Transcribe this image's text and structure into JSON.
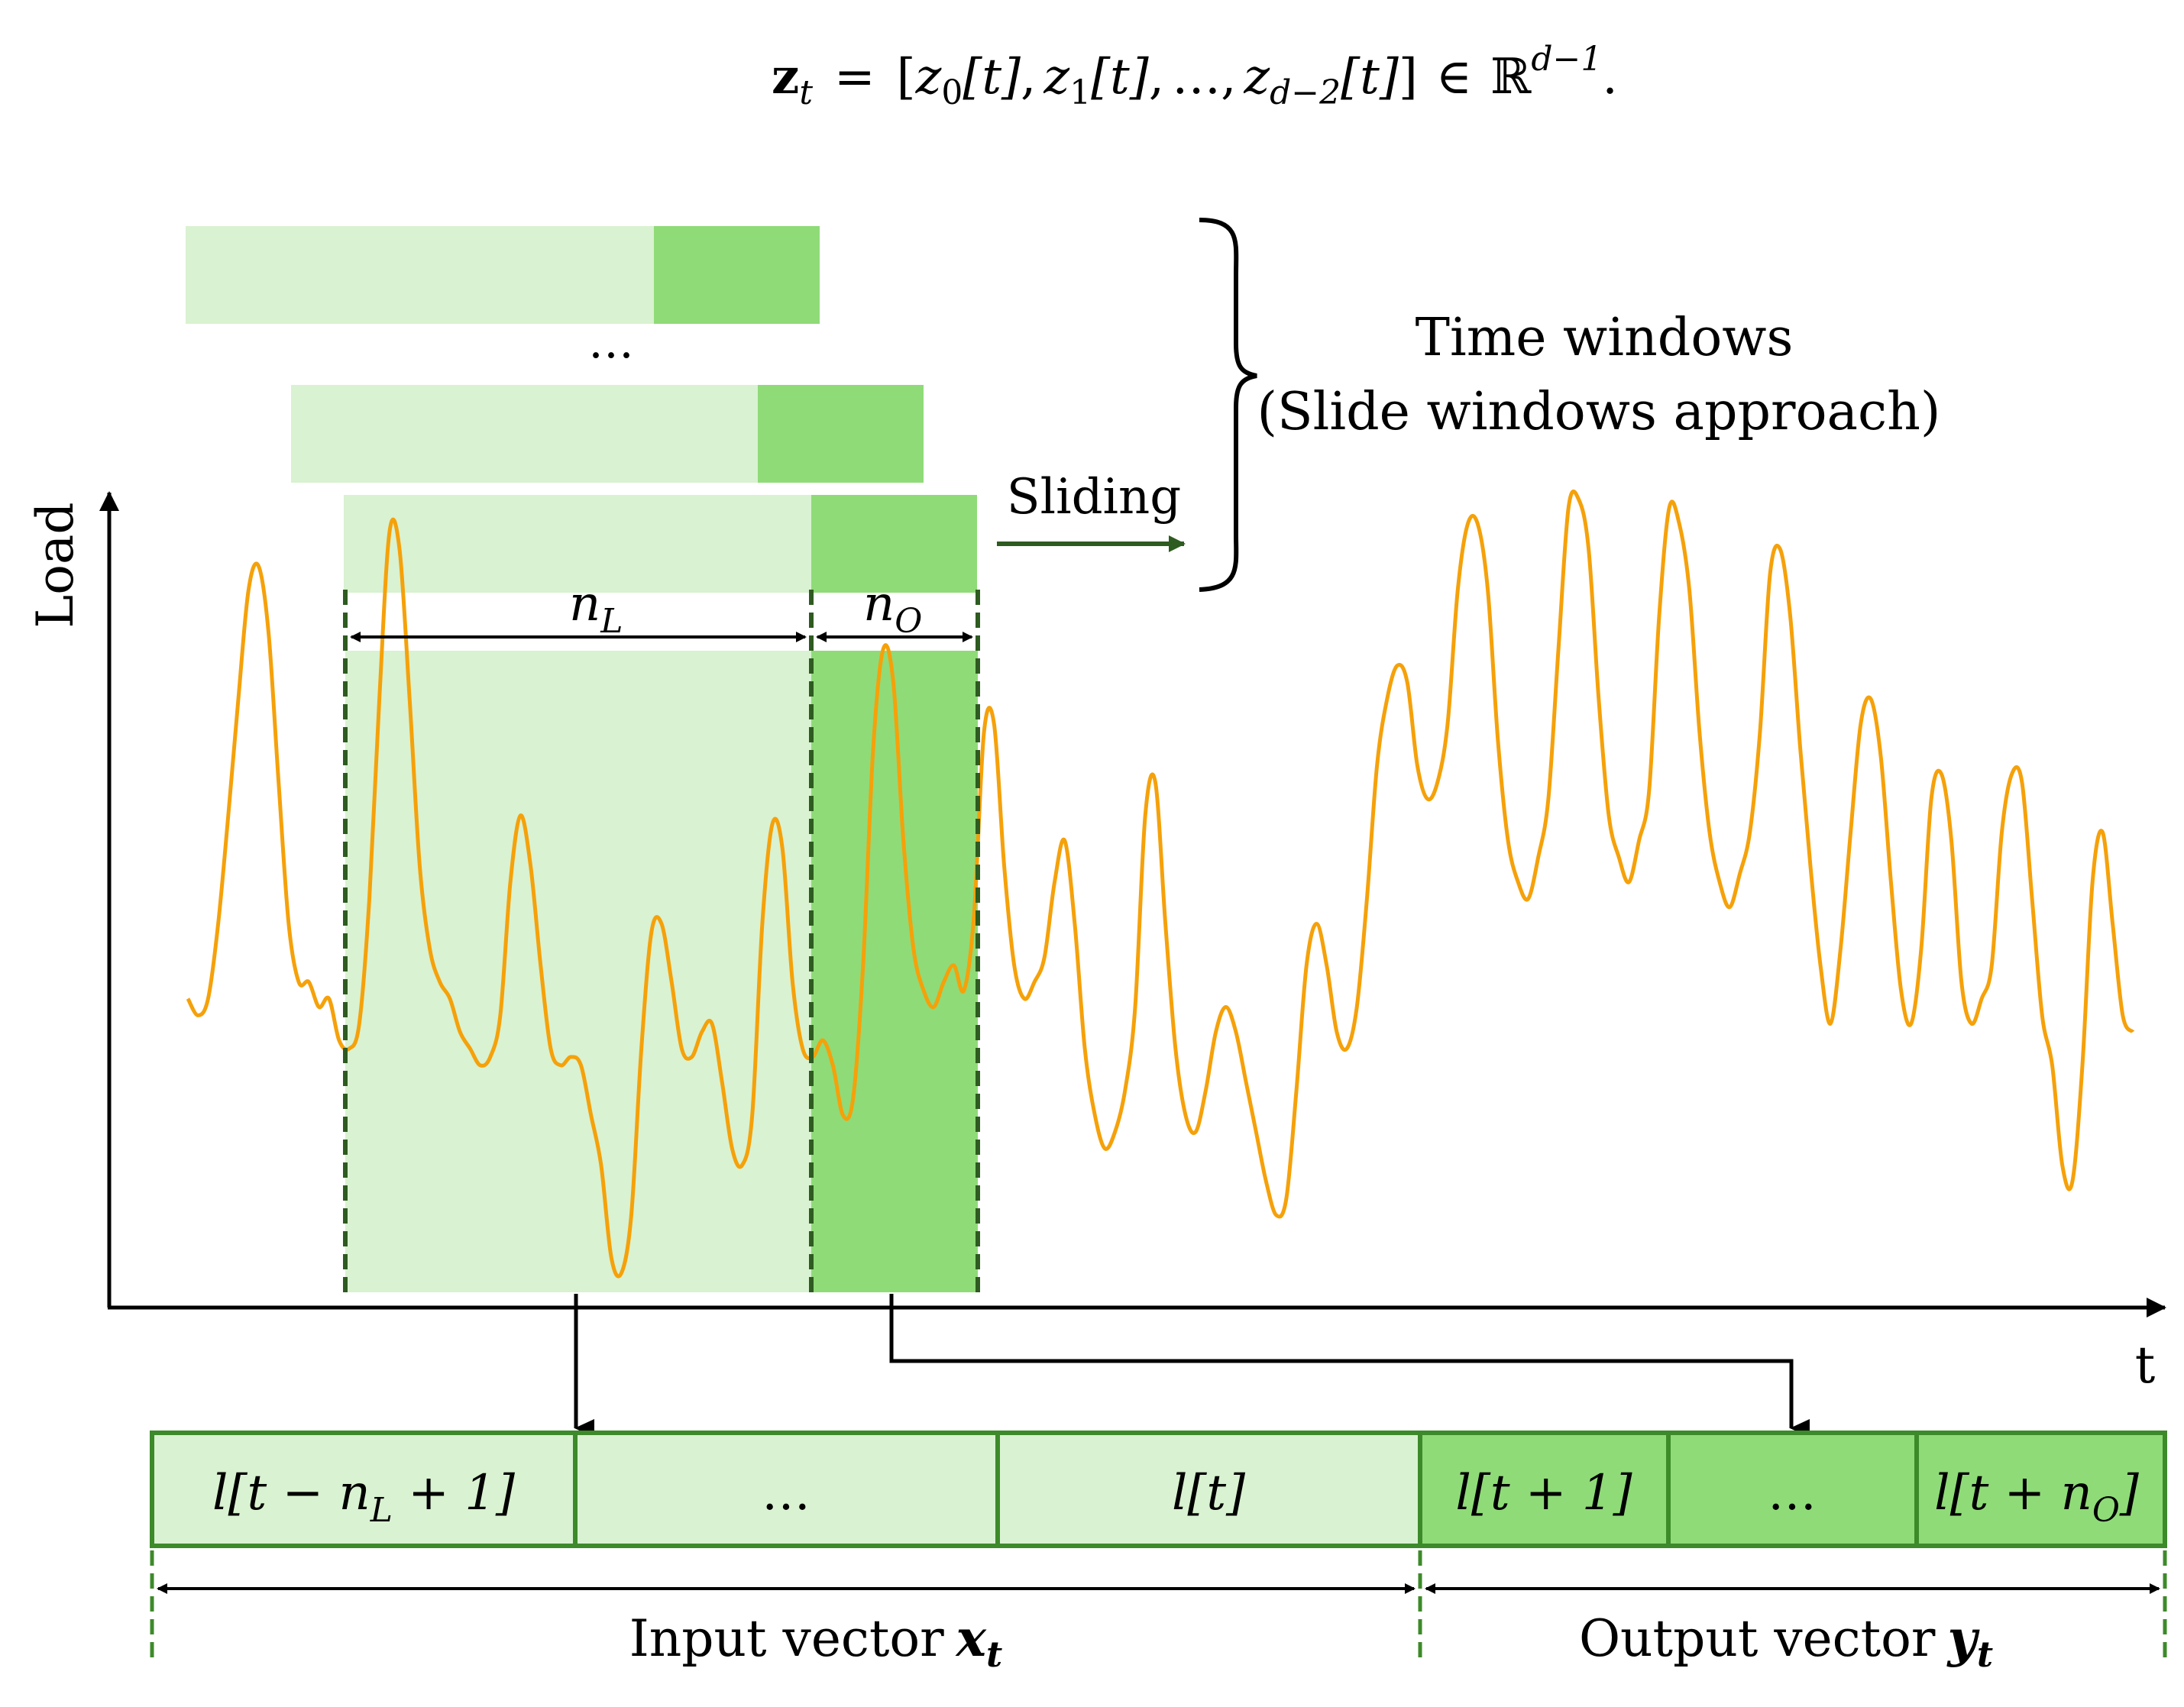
{
  "formula": {
    "lhs_symbol": "z",
    "lhs_sub": "t",
    "equals": "=",
    "open_bracket": "[",
    "c0": "z",
    "c0_sub": "0",
    "c0_arg": "[t]",
    "comma1": ",",
    "c1": "z",
    "c1_sub": "1",
    "c1_arg": "[t]",
    "comma2": ",",
    "ellipsis": "…",
    "comma3": ",",
    "c2": "z",
    "c2_sub": "d−2",
    "c2_arg": "[t]",
    "close_bracket": "]",
    "in": "∈",
    "space": "ℝ",
    "space_sup": "d−1",
    "period": "."
  },
  "windows": {
    "label_line1": "Time windows",
    "label_line2": "(Slide windows approach)",
    "stack_ellipsis": "…",
    "sliding_label": "Sliding",
    "nL_base": "n",
    "nL_sub": "L",
    "nO_base": "n",
    "nO_sub": "O"
  },
  "axes": {
    "y_label": "Load",
    "x_label": "t"
  },
  "vector": {
    "cells": [
      {
        "label_pre": "l[t − n",
        "label_sub": "L",
        "label_post": " + 1]",
        "kind": "input"
      },
      {
        "label_pre": "…",
        "label_sub": "",
        "label_post": "",
        "kind": "input"
      },
      {
        "label_pre": "l[t]",
        "label_sub": "",
        "label_post": "",
        "kind": "input"
      },
      {
        "label_pre": "l[t + 1]",
        "label_sub": "",
        "label_post": "",
        "kind": "output"
      },
      {
        "label_pre": "…",
        "label_sub": "",
        "label_post": "",
        "kind": "output"
      },
      {
        "label_pre": "l[t + n",
        "label_sub": "O",
        "label_post": "]",
        "kind": "output"
      }
    ],
    "input_label": "Input vector",
    "input_symbol": "x",
    "input_sub": "t",
    "output_label": "Output vector",
    "output_symbol": "y",
    "output_sub": "t"
  },
  "colors": {
    "light_green": "#d9f2d1",
    "mid_green": "#8fdb78",
    "border_green": "#3d8a2a",
    "dark_green": "#2e5b20",
    "load_line": "#f5a10a",
    "black": "#000000"
  },
  "load_series": {
    "description_note": "relative load level of the plotted series, 0 = axis baseline, 1 = top of plot",
    "values": [
      0.36,
      0.34,
      0.36,
      0.45,
      0.58,
      0.72,
      0.85,
      0.88,
      0.8,
      0.62,
      0.45,
      0.38,
      0.38,
      0.35,
      0.36,
      0.31,
      0.3,
      0.33,
      0.48,
      0.72,
      0.92,
      0.9,
      0.72,
      0.52,
      0.42,
      0.38,
      0.36,
      0.32,
      0.3,
      0.28,
      0.29,
      0.34,
      0.5,
      0.58,
      0.52,
      0.4,
      0.3,
      0.28,
      0.29,
      0.28,
      0.22,
      0.16,
      0.05,
      0.03,
      0.1,
      0.3,
      0.44,
      0.45,
      0.38,
      0.3,
      0.29,
      0.32,
      0.33,
      0.26,
      0.18,
      0.16,
      0.22,
      0.45,
      0.57,
      0.54,
      0.38,
      0.3,
      0.29,
      0.31,
      0.28,
      0.22,
      0.24,
      0.4,
      0.66,
      0.78,
      0.74,
      0.55,
      0.42,
      0.37,
      0.35,
      0.38,
      0.4,
      0.37,
      0.46,
      0.68,
      0.69,
      0.52,
      0.4,
      0.36,
      0.38,
      0.41,
      0.5,
      0.55,
      0.45,
      0.3,
      0.22,
      0.18,
      0.2,
      0.25,
      0.35,
      0.58,
      0.62,
      0.45,
      0.3,
      0.22,
      0.2,
      0.25,
      0.32,
      0.35,
      0.32,
      0.26,
      0.2,
      0.14,
      0.1,
      0.12,
      0.25,
      0.4,
      0.45,
      0.4,
      0.32,
      0.3,
      0.35,
      0.48,
      0.64,
      0.72,
      0.76,
      0.74,
      0.64,
      0.6,
      0.62,
      0.69,
      0.85,
      0.93,
      0.93,
      0.85,
      0.67,
      0.55,
      0.5,
      0.48,
      0.53,
      0.6,
      0.78,
      0.95,
      0.96,
      0.9,
      0.72,
      0.58,
      0.53,
      0.5,
      0.55,
      0.61,
      0.82,
      0.95,
      0.93,
      0.85,
      0.68,
      0.56,
      0.5,
      0.47,
      0.51,
      0.56,
      0.68,
      0.87,
      0.9,
      0.82,
      0.66,
      0.52,
      0.4,
      0.33,
      0.42,
      0.56,
      0.69,
      0.72,
      0.65,
      0.5,
      0.37,
      0.33,
      0.42,
      0.6,
      0.63,
      0.55,
      0.38,
      0.33,
      0.36,
      0.4,
      0.56,
      0.63,
      0.62,
      0.48,
      0.34,
      0.28,
      0.16,
      0.14,
      0.28,
      0.5,
      0.56,
      0.45,
      0.34,
      0.32
    ]
  }
}
